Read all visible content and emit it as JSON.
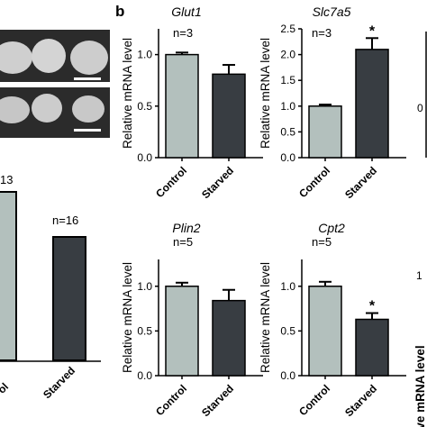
{
  "panel_b_label": "b",
  "colors": {
    "control": "#b3c0bd",
    "starved": "#383d42",
    "edge": "#000000"
  },
  "chart_data": [
    {
      "id": "glut1",
      "type": "bar",
      "title": "Glut1",
      "n_label": "n=3",
      "ylabel": "Relative mRNA level",
      "ylim": [
        0,
        1.25
      ],
      "yticks": [
        "0.0",
        "0.5",
        "1.0"
      ],
      "ytick_values": [
        0,
        0.5,
        1.0
      ],
      "categories": [
        "Control",
        "Starved"
      ],
      "values": [
        1.0,
        0.81
      ],
      "errors": [
        0.02,
        0.09
      ],
      "annotations": [
        "",
        ""
      ]
    },
    {
      "id": "slc7a5",
      "type": "bar",
      "title": "Slc7a5",
      "n_label": "n=3",
      "ylabel": "Relative mRNA level",
      "ylim": [
        0,
        2.5
      ],
      "yticks": [
        "0.0",
        "0.5",
        "1.0",
        "1.5",
        "2.0",
        "2.5"
      ],
      "ytick_values": [
        0,
        0.5,
        1.0,
        1.5,
        2.0,
        2.5
      ],
      "categories": [
        "Control",
        "Starved"
      ],
      "values": [
        1.0,
        2.1
      ],
      "errors": [
        0.03,
        0.22
      ],
      "annotations": [
        "",
        "*"
      ]
    },
    {
      "id": "plin2",
      "type": "bar",
      "title": "Plin2",
      "n_label": "n=5",
      "ylabel": "Relative mRNA level",
      "ylim": [
        0,
        1.3
      ],
      "yticks": [
        "0.0",
        "0.5",
        "1.0"
      ],
      "ytick_values": [
        0,
        0.5,
        1.0
      ],
      "categories": [
        "Control",
        "Starved"
      ],
      "values": [
        1.0,
        0.84
      ],
      "errors": [
        0.04,
        0.12
      ],
      "annotations": [
        "",
        ""
      ]
    },
    {
      "id": "cpt2",
      "type": "bar",
      "title": "Cpt2",
      "n_label": "n=5",
      "ylabel": "Relative mRNA level",
      "ylim": [
        0,
        1.3
      ],
      "yticks": [
        "0.0",
        "0.5",
        "1.0"
      ],
      "ytick_values": [
        0,
        0.5,
        1.0
      ],
      "categories": [
        "Control",
        "Starved"
      ],
      "values": [
        1.0,
        0.63
      ],
      "errors": [
        0.05,
        0.07
      ],
      "annotations": [
        "",
        "*"
      ]
    }
  ],
  "panel_a_partial": {
    "n_labels": [
      "13",
      "n=16"
    ],
    "categories": [
      "ol",
      "Starved"
    ],
    "values": [
      1.0,
      0.76
    ]
  },
  "right_edge_partial": {
    "top_tick": "0",
    "bottom_tick": "1",
    "bottom_label": "ve mRNA level"
  }
}
